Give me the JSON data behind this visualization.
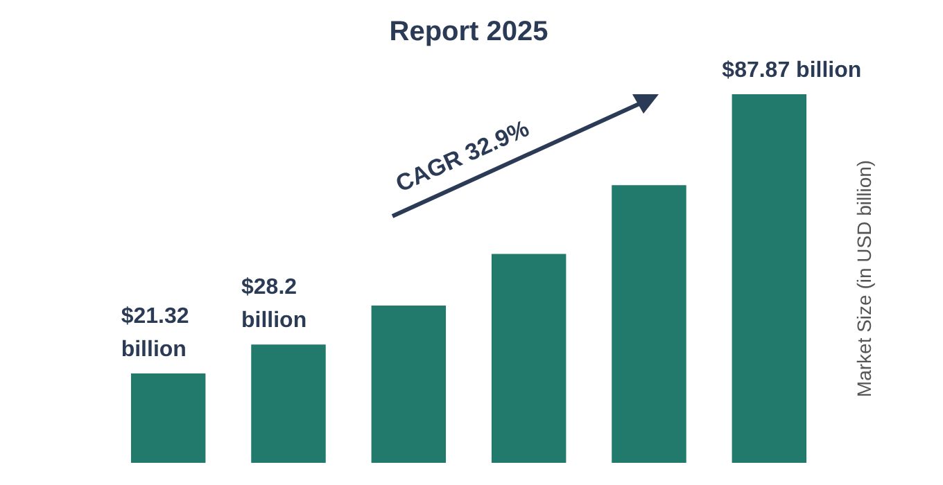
{
  "chart_data": {
    "type": "bar",
    "title": "Report 2025",
    "ylabel": "Market Size (in USD billion)",
    "categories": [
      null,
      null,
      null,
      null,
      null,
      null
    ],
    "values": [
      21.32,
      28.2,
      37.48,
      49.81,
      66.2,
      87.87
    ],
    "color": "#217a6b",
    "value_labels": [
      "$21.32 billion",
      "$28.2 billion",
      null,
      null,
      null,
      "$87.87 billion"
    ],
    "annotations": [
      "CAGR 32.9%"
    ],
    "grid": false
  }
}
